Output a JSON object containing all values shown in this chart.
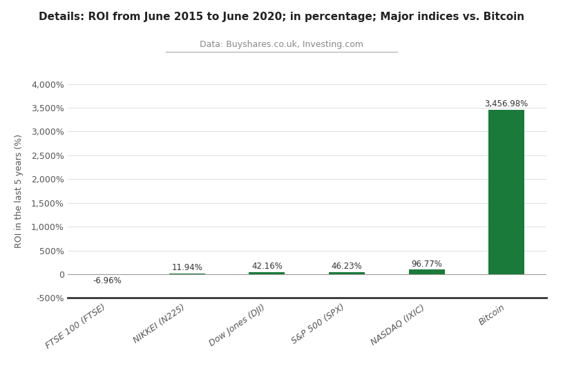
{
  "categories": [
    "FTSE 100 (FTSE)",
    "NIKKEI (N225)",
    "Dow Jones (DJI)",
    "S&P 500 (SPX)",
    "NASDAQ (IXIC)",
    "Bitcoin"
  ],
  "values": [
    -6.96,
    11.94,
    42.16,
    46.23,
    96.77,
    3456.98
  ],
  "bar_colors": [
    "#cc3333",
    "#1a7a3a",
    "#1a7a3a",
    "#1a7a3a",
    "#1a7a3a",
    "#1a7a3a"
  ],
  "value_labels": [
    "-6.96%",
    "11.94%",
    "42.16%",
    "46.23%",
    "96.77%",
    "3,456.98%"
  ],
  "title": "Details: ROI from June 2015 to June 2020; in percentage; Major indices vs. Bitcoin",
  "subtitle": "Data: Buyshares.co.uk, Investing.com",
  "ylabel": "ROI in the last 5 years (%)",
  "ylim": [
    -500,
    4000
  ],
  "yticks": [
    -500,
    0,
    500,
    1000,
    1500,
    2000,
    2500,
    3000,
    3500,
    4000
  ],
  "ytick_labels": [
    "-500%",
    "0",
    "500%",
    "1,000%",
    "1,500%",
    "2,000%",
    "2,500%",
    "3,000%",
    "3,500%",
    "4,000%"
  ],
  "background_color": "#ffffff",
  "grid_color": "#dddddd",
  "title_fontsize": 11,
  "subtitle_fontsize": 9,
  "bar_width": 0.45
}
